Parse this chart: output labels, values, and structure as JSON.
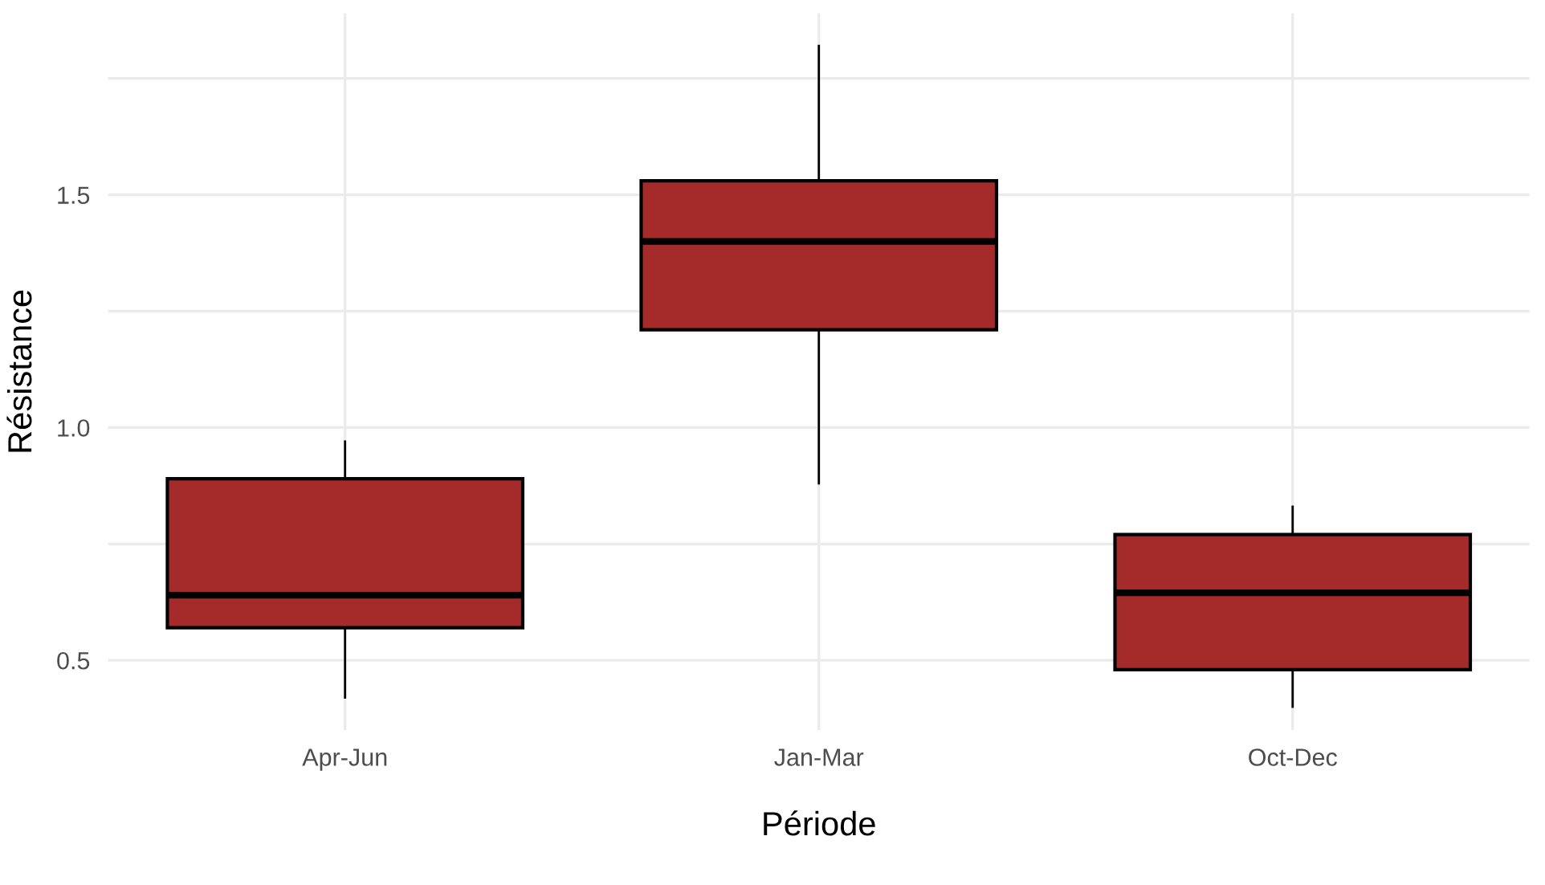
{
  "chart_data": {
    "type": "box",
    "xlabel": "Période",
    "ylabel": "Résistance",
    "categories": [
      "Apr-Jun",
      "Jan-Mar",
      "Oct-Dec"
    ],
    "series": [
      {
        "color": "#a52a2a",
        "boxes": [
          {
            "low": 0.42,
            "q1": 0.57,
            "median": 0.64,
            "q3": 0.89,
            "high": 0.97
          },
          {
            "low": 0.88,
            "q1": 1.21,
            "median": 1.4,
            "q3": 1.53,
            "high": 1.82
          },
          {
            "low": 0.4,
            "q1": 0.48,
            "median": 0.645,
            "q3": 0.77,
            "high": 0.83
          }
        ]
      }
    ],
    "ylim": [
      0.35,
      1.89
    ],
    "yticks": [
      0.5,
      {
        "value": 0.75,
        "label": null
      },
      {
        "value": 1.0,
        "label": "1.0"
      },
      {
        "value": 1.25,
        "label": null
      },
      1.5,
      {
        "value": 1.75,
        "label": null
      }
    ],
    "grid": true
  }
}
